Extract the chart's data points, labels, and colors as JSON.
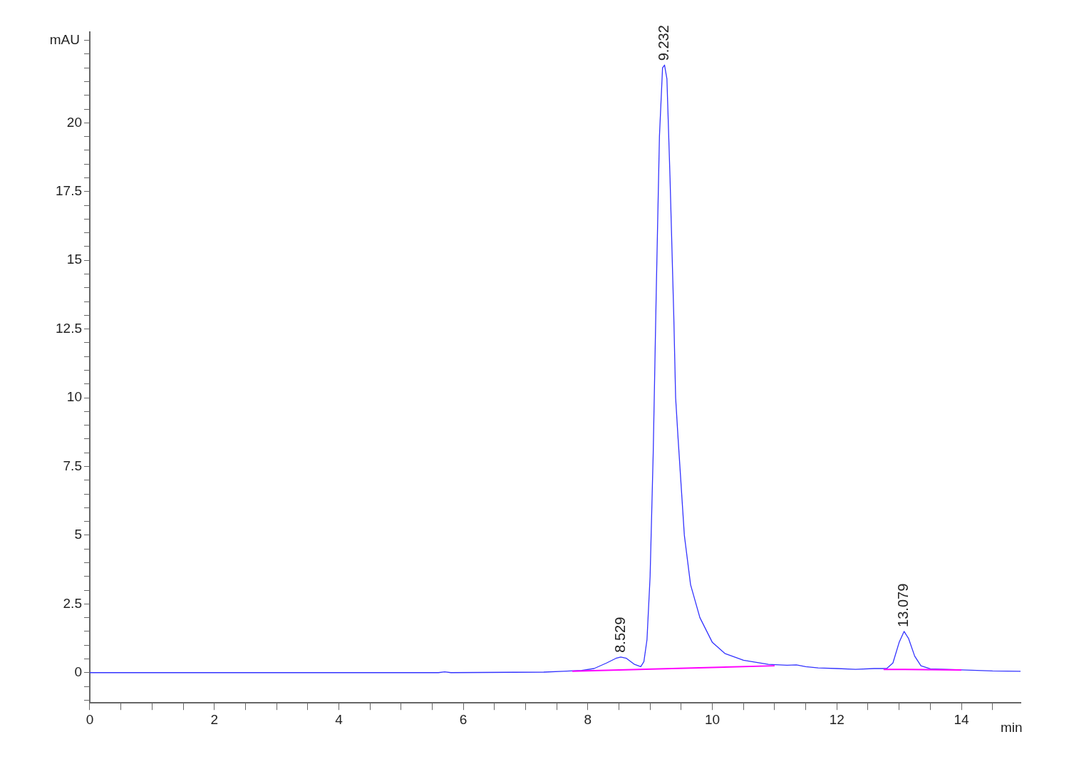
{
  "chart_data": {
    "type": "line",
    "xlabel": "min",
    "ylabel": "mAU",
    "xlim": [
      0,
      14.95
    ],
    "ylim": [
      -1.1,
      23.3
    ],
    "xticks": [
      0,
      {
        "value": 0.5,
        "label": null
      },
      {
        "value": 1,
        "label": null
      },
      {
        "value": 1.5,
        "label": null
      },
      2,
      {
        "value": 2.5,
        "label": null
      },
      {
        "value": 3,
        "label": null
      },
      {
        "value": 3.5,
        "label": null
      },
      4,
      {
        "value": 4.5,
        "label": null
      },
      {
        "value": 5,
        "label": null
      },
      {
        "value": 5.5,
        "label": null
      },
      6,
      {
        "value": 6.5,
        "label": null
      },
      {
        "value": 7,
        "label": null
      },
      {
        "value": 7.5,
        "label": null
      },
      8,
      {
        "value": 8.5,
        "label": null
      },
      {
        "value": 9,
        "label": null
      },
      {
        "value": 9.5,
        "label": null
      },
      10,
      {
        "value": 10.5,
        "label": null
      },
      {
        "value": 11,
        "label": null
      },
      {
        "value": 11.5,
        "label": null
      },
      12,
      {
        "value": 12.5,
        "label": null
      },
      {
        "value": 13,
        "label": null
      },
      {
        "value": 13.5,
        "label": null
      },
      14,
      {
        "value": 14.5,
        "label": null
      }
    ],
    "yticks": [
      {
        "value": -1,
        "label": null
      },
      {
        "value": -0.5,
        "label": null
      },
      0,
      {
        "value": 0.5,
        "label": null
      },
      {
        "value": 1,
        "label": null
      },
      {
        "value": 1.5,
        "label": null
      },
      {
        "value": 2,
        "label": null
      },
      2.5,
      {
        "value": 3,
        "label": null
      },
      {
        "value": 3.5,
        "label": null
      },
      {
        "value": 4,
        "label": null
      },
      {
        "value": 4.5,
        "label": null
      },
      5,
      {
        "value": 5.5,
        "label": null
      },
      {
        "value": 6,
        "label": null
      },
      {
        "value": 6.5,
        "label": null
      },
      {
        "value": 7,
        "label": null
      },
      7.5,
      {
        "value": 8,
        "label": null
      },
      {
        "value": 8.5,
        "label": null
      },
      {
        "value": 9,
        "label": null
      },
      {
        "value": 9.5,
        "label": null
      },
      10,
      {
        "value": 10.5,
        "label": null
      },
      {
        "value": 11,
        "label": null
      },
      {
        "value": 11.5,
        "label": null
      },
      {
        "value": 12,
        "label": null
      },
      12.5,
      {
        "value": 13,
        "label": null
      },
      {
        "value": 13.5,
        "label": null
      },
      {
        "value": 14,
        "label": null
      },
      {
        "value": 14.5,
        "label": null
      },
      15,
      {
        "value": 15.5,
        "label": null
      },
      {
        "value": 16,
        "label": null
      },
      {
        "value": 16.5,
        "label": null
      },
      {
        "value": 17,
        "label": null
      },
      17.5,
      {
        "value": 18,
        "label": null
      },
      {
        "value": 18.5,
        "label": null
      },
      {
        "value": 19,
        "label": null
      },
      {
        "value": 19.5,
        "label": null
      },
      20,
      {
        "value": 20.5,
        "label": null
      },
      {
        "value": 21,
        "label": null
      },
      {
        "value": 21.5,
        "label": null
      },
      {
        "value": 22,
        "label": null
      },
      {
        "value": 22.5,
        "label": null
      },
      {
        "value": 23,
        "label": null
      }
    ],
    "grid": false,
    "legend": false,
    "marker": "none",
    "line_style": "solid",
    "series": [
      {
        "color": "#3333ff",
        "x": [
          0,
          5.6,
          5.7,
          5.8,
          7.3,
          7.6,
          7.9,
          8.1,
          8.3,
          8.45,
          8.529,
          8.62,
          8.75,
          8.85,
          8.9,
          8.95,
          9.0,
          9.05,
          9.1,
          9.15,
          9.2,
          9.232,
          9.27,
          9.32,
          9.38,
          9.41,
          9.45,
          9.55,
          9.65,
          9.8,
          10.0,
          10.2,
          10.5,
          10.9,
          11.2,
          11.35,
          11.5,
          11.7,
          12.0,
          12.3,
          12.6,
          12.8,
          12.9,
          13.0,
          13.079,
          13.15,
          13.25,
          13.35,
          13.5,
          14.0,
          14.5,
          14.95
        ],
        "values": [
          0,
          0,
          0.03,
          0,
          0.02,
          0.05,
          0.08,
          0.15,
          0.35,
          0.52,
          0.57,
          0.52,
          0.3,
          0.22,
          0.4,
          1.2,
          3.5,
          8,
          14,
          19.5,
          22,
          22.1,
          21.6,
          18,
          13,
          10,
          8.5,
          5,
          3.2,
          2,
          1.1,
          0.7,
          0.45,
          0.3,
          0.27,
          0.28,
          0.22,
          0.17,
          0.15,
          0.12,
          0.15,
          0.15,
          0.35,
          1.1,
          1.5,
          1.25,
          0.6,
          0.25,
          0.14,
          0.1,
          0.06,
          0.05
        ]
      },
      {
        "color": "#ff00ff",
        "x": [
          7.75,
          11.0,
          11.01,
          12.75,
          14.0
        ],
        "values": [
          0.05,
          0.25,
          null,
          0.12,
          0.1
        ]
      }
    ],
    "annotations": [
      {
        "text": "8.529",
        "x": 8.529,
        "y": 0.57
      },
      {
        "text": "9.232",
        "x": 9.232,
        "y": 22.1
      },
      {
        "text": "13.079",
        "x": 13.079,
        "y": 1.5
      }
    ]
  }
}
